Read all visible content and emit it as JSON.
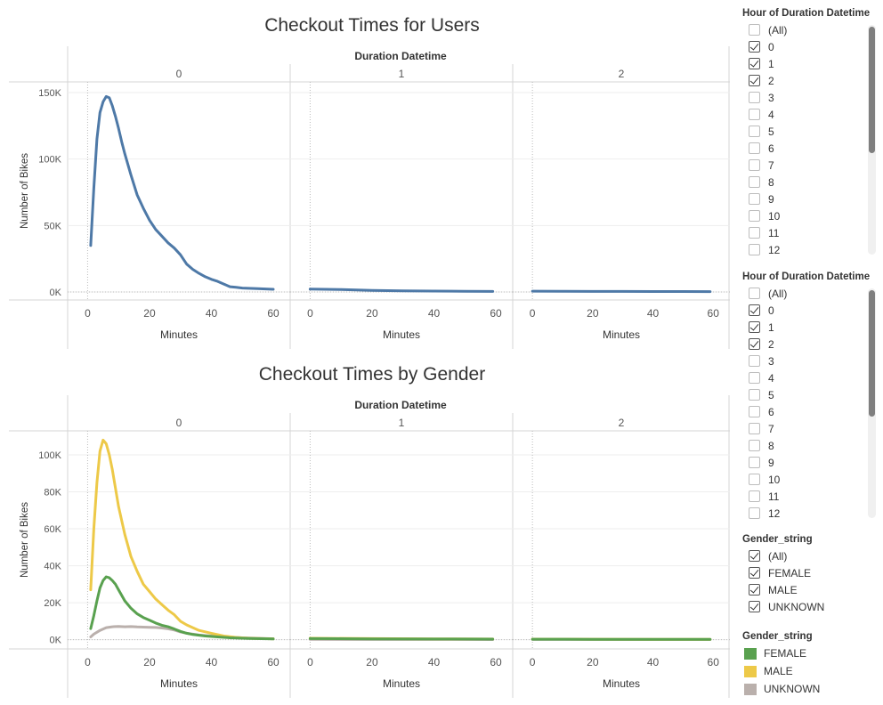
{
  "chart_data": [
    {
      "type": "line",
      "title": "Checkout Times for Users",
      "column_header": "Duration Datetime",
      "panels": [
        "0",
        "1",
        "2"
      ],
      "xlabel": "Minutes",
      "ylabel": "Number of Bikes",
      "xlim": [
        -3,
        62
      ],
      "ylim": [
        -6000,
        158000
      ],
      "x_ticks": [
        0,
        20,
        40,
        60
      ],
      "x_tick_labels": [
        "0",
        "20",
        "40",
        "60"
      ],
      "y_ticks": [
        0,
        50000,
        100000,
        150000
      ],
      "y_tick_labels": [
        "0K",
        "50K",
        "100K",
        "150K"
      ],
      "grid": true,
      "series": [
        {
          "color": "#4e79a7",
          "panel_values": [
            [
              [
                1,
                35000
              ],
              [
                2,
                78000
              ],
              [
                3,
                115000
              ],
              [
                4,
                135000
              ],
              [
                5,
                143000
              ],
              [
                6,
                147000
              ],
              [
                7,
                146000
              ],
              [
                8,
                140000
              ],
              [
                9,
                132000
              ],
              [
                10,
                123000
              ],
              [
                11,
                113000
              ],
              [
                12,
                104000
              ],
              [
                14,
                88000
              ],
              [
                16,
                73000
              ],
              [
                18,
                63000
              ],
              [
                20,
                54000
              ],
              [
                22,
                47000
              ],
              [
                24,
                42000
              ],
              [
                26,
                37000
              ],
              [
                28,
                33000
              ],
              [
                30,
                28000
              ],
              [
                32,
                21000
              ],
              [
                34,
                17000
              ],
              [
                36,
                14000
              ],
              [
                38,
                11500
              ],
              [
                40,
                9500
              ],
              [
                42,
                8000
              ],
              [
                44,
                6000
              ],
              [
                46,
                4000
              ],
              [
                48,
                3500
              ],
              [
                50,
                3000
              ],
              [
                55,
                2500
              ],
              [
                60,
                2000
              ]
            ],
            [
              [
                0,
                2200
              ],
              [
                10,
                1800
              ],
              [
                20,
                1200
              ],
              [
                30,
                900
              ],
              [
                40,
                700
              ],
              [
                50,
                500
              ],
              [
                59,
                400
              ]
            ],
            [
              [
                0,
                600
              ],
              [
                10,
                500
              ],
              [
                20,
                450
              ],
              [
                30,
                400
              ],
              [
                40,
                380
              ],
              [
                50,
                350
              ],
              [
                59,
                300
              ]
            ]
          ]
        }
      ]
    },
    {
      "type": "line",
      "title": "Checkout Times by Gender",
      "column_header": "Duration Datetime",
      "panels": [
        "0",
        "1",
        "2"
      ],
      "xlabel": "Minutes",
      "ylabel": "Number of Bikes",
      "xlim": [
        -3,
        62
      ],
      "ylim": [
        -5000,
        113000
      ],
      "x_ticks": [
        0,
        20,
        40,
        60
      ],
      "x_tick_labels": [
        "0",
        "20",
        "40",
        "60"
      ],
      "y_ticks": [
        0,
        20000,
        40000,
        60000,
        80000,
        100000
      ],
      "y_tick_labels": [
        "0K",
        "20K",
        "40K",
        "60K",
        "80K",
        "100K"
      ],
      "grid": true,
      "legend_placement": "right",
      "series": [
        {
          "name": "UNKNOWN",
          "color": "#bab0ac",
          "panel_values": [
            [
              [
                1,
                1500
              ],
              [
                2,
                3000
              ],
              [
                4,
                5000
              ],
              [
                6,
                6500
              ],
              [
                8,
                7000
              ],
              [
                10,
                7200
              ],
              [
                12,
                7000
              ],
              [
                14,
                7100
              ],
              [
                16,
                6900
              ],
              [
                18,
                6800
              ],
              [
                20,
                6700
              ],
              [
                22,
                6600
              ],
              [
                24,
                6300
              ],
              [
                26,
                5900
              ],
              [
                28,
                5200
              ],
              [
                30,
                4200
              ],
              [
                32,
                3500
              ],
              [
                34,
                3000
              ],
              [
                36,
                2500
              ],
              [
                40,
                2000
              ],
              [
                45,
                1500
              ],
              [
                50,
                1000
              ],
              [
                55,
                800
              ],
              [
                60,
                500
              ]
            ],
            [
              [
                0,
                150
              ],
              [
                20,
                120
              ],
              [
                40,
                100
              ],
              [
                59,
                80
              ]
            ],
            [
              [
                0,
                100
              ],
              [
                20,
                90
              ],
              [
                40,
                80
              ],
              [
                59,
                60
              ]
            ]
          ]
        },
        {
          "name": "MALE",
          "color": "#edc948",
          "panel_values": [
            [
              [
                1,
                27000
              ],
              [
                2,
                60000
              ],
              [
                3,
                85000
              ],
              [
                4,
                102000
              ],
              [
                5,
                108000
              ],
              [
                6,
                106000
              ],
              [
                7,
                100000
              ],
              [
                8,
                92000
              ],
              [
                10,
                72000
              ],
              [
                12,
                57000
              ],
              [
                14,
                45000
              ],
              [
                16,
                37000
              ],
              [
                18,
                30000
              ],
              [
                20,
                26000
              ],
              [
                22,
                22000
              ],
              [
                24,
                19000
              ],
              [
                26,
                16000
              ],
              [
                28,
                13500
              ],
              [
                30,
                10000
              ],
              [
                32,
                8000
              ],
              [
                34,
                6500
              ],
              [
                36,
                5000
              ],
              [
                40,
                3500
              ],
              [
                44,
                2000
              ],
              [
                48,
                1200
              ],
              [
                52,
                800
              ],
              [
                56,
                600
              ],
              [
                60,
                500
              ]
            ],
            [
              [
                0,
                800
              ],
              [
                20,
                600
              ],
              [
                40,
                450
              ],
              [
                59,
                350
              ]
            ],
            [
              [
                0,
                300
              ],
              [
                20,
                250
              ],
              [
                40,
                200
              ],
              [
                59,
                150
              ]
            ]
          ]
        },
        {
          "name": "FEMALE",
          "color": "#59a14f",
          "panel_values": [
            [
              [
                1,
                6000
              ],
              [
                2,
                13000
              ],
              [
                3,
                21000
              ],
              [
                4,
                28000
              ],
              [
                5,
                32000
              ],
              [
                6,
                34000
              ],
              [
                7,
                33500
              ],
              [
                8,
                32000
              ],
              [
                9,
                30000
              ],
              [
                10,
                27000
              ],
              [
                12,
                21000
              ],
              [
                14,
                17000
              ],
              [
                16,
                14000
              ],
              [
                18,
                12000
              ],
              [
                20,
                10500
              ],
              [
                22,
                9000
              ],
              [
                24,
                7800
              ],
              [
                26,
                7000
              ],
              [
                28,
                5800
              ],
              [
                30,
                4500
              ],
              [
                32,
                3500
              ],
              [
                34,
                2800
              ],
              [
                38,
                2000
              ],
              [
                42,
                1500
              ],
              [
                46,
                1000
              ],
              [
                52,
                700
              ],
              [
                60,
                400
              ]
            ],
            [
              [
                0,
                600
              ],
              [
                20,
                450
              ],
              [
                40,
                350
              ],
              [
                59,
                300
              ]
            ],
            [
              [
                0,
                250
              ],
              [
                20,
                200
              ],
              [
                40,
                180
              ],
              [
                59,
                150
              ]
            ]
          ]
        }
      ]
    }
  ],
  "filters": [
    {
      "title": "Hour of Duration Datetime",
      "items": [
        {
          "label": "(All)",
          "checked": false
        },
        {
          "label": "0",
          "checked": true
        },
        {
          "label": "1",
          "checked": true
        },
        {
          "label": "2",
          "checked": true
        },
        {
          "label": "3",
          "checked": false
        },
        {
          "label": "4",
          "checked": false
        },
        {
          "label": "5",
          "checked": false
        },
        {
          "label": "6",
          "checked": false
        },
        {
          "label": "7",
          "checked": false
        },
        {
          "label": "8",
          "checked": false
        },
        {
          "label": "9",
          "checked": false
        },
        {
          "label": "10",
          "checked": false
        },
        {
          "label": "11",
          "checked": false
        },
        {
          "label": "12",
          "checked": false
        }
      ]
    },
    {
      "title": "Hour of Duration Datetime",
      "items": [
        {
          "label": "(All)",
          "checked": false
        },
        {
          "label": "0",
          "checked": true
        },
        {
          "label": "1",
          "checked": true
        },
        {
          "label": "2",
          "checked": true
        },
        {
          "label": "3",
          "checked": false
        },
        {
          "label": "4",
          "checked": false
        },
        {
          "label": "5",
          "checked": false
        },
        {
          "label": "6",
          "checked": false
        },
        {
          "label": "7",
          "checked": false
        },
        {
          "label": "8",
          "checked": false
        },
        {
          "label": "9",
          "checked": false
        },
        {
          "label": "10",
          "checked": false
        },
        {
          "label": "11",
          "checked": false
        },
        {
          "label": "12",
          "checked": false
        }
      ]
    },
    {
      "title": "Gender_string",
      "items": [
        {
          "label": "(All)",
          "checked": true
        },
        {
          "label": "FEMALE",
          "checked": true
        },
        {
          "label": "MALE",
          "checked": true
        },
        {
          "label": "UNKNOWN",
          "checked": true
        }
      ]
    }
  ],
  "legend": {
    "title": "Gender_string",
    "items": [
      {
        "label": "FEMALE",
        "color": "#59a14f"
      },
      {
        "label": "MALE",
        "color": "#edc948"
      },
      {
        "label": "UNKNOWN",
        "color": "#bab0ac"
      }
    ]
  }
}
